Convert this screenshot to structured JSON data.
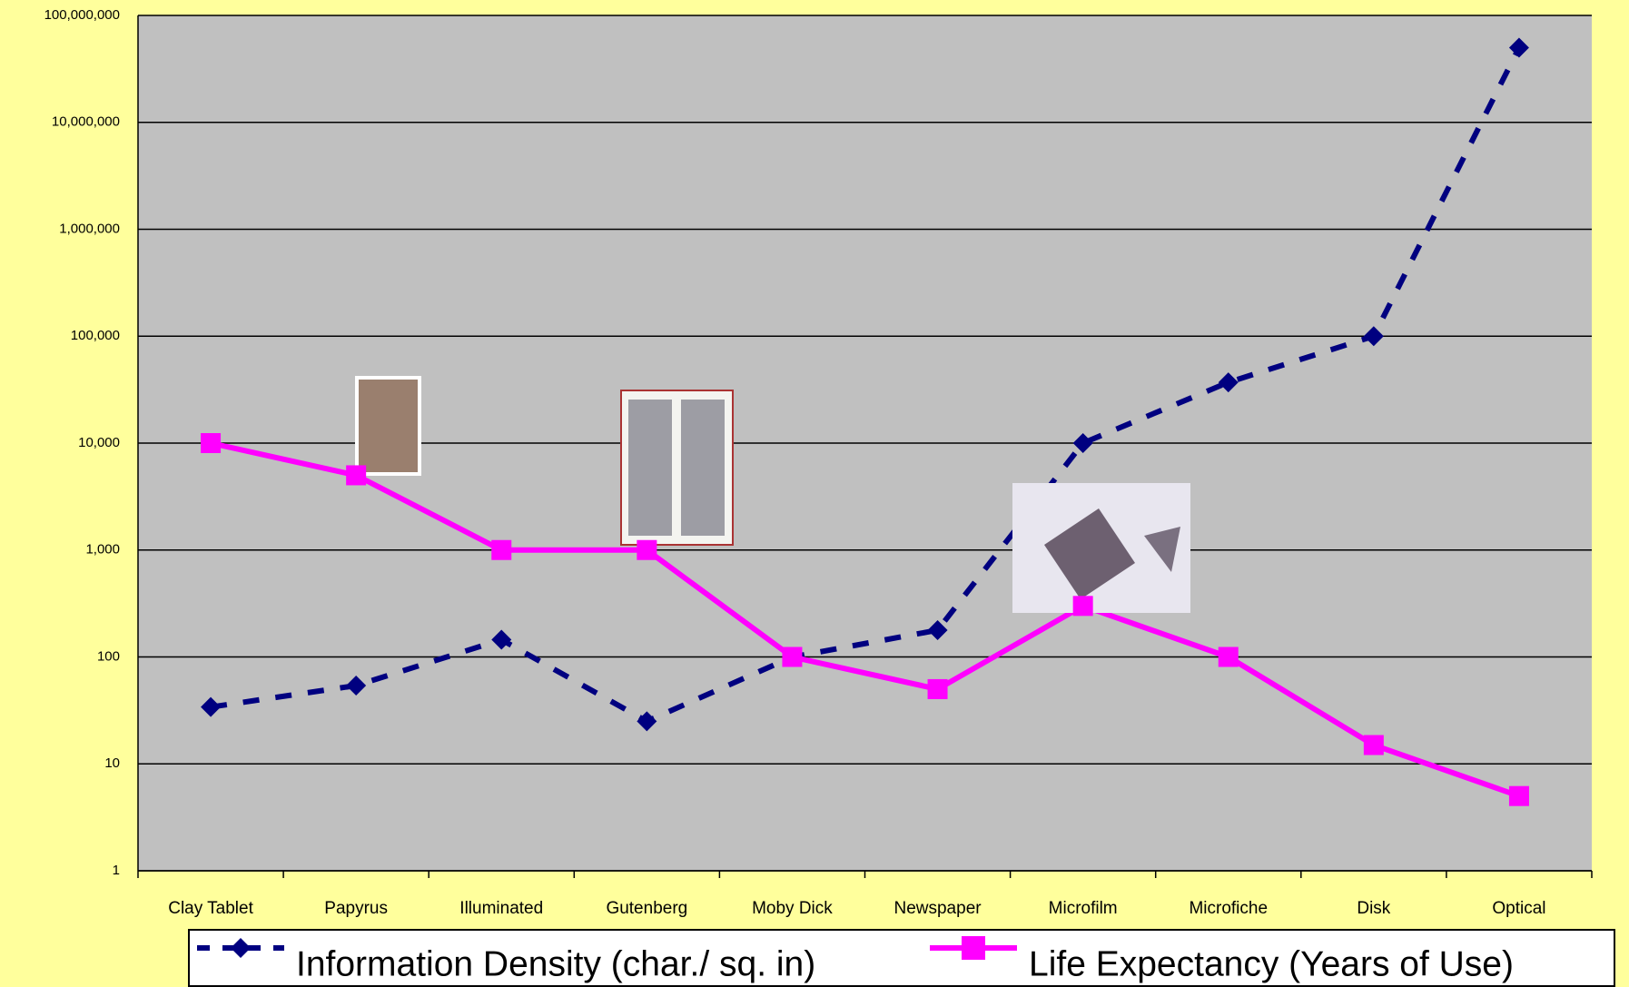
{
  "chart_data": {
    "type": "line",
    "categories": [
      "Clay Tablet",
      "Papyrus",
      "Illuminated",
      "Gutenberg",
      "Moby Dick",
      "Newspaper",
      "Microfilm",
      "Microfiche",
      "Disk",
      "Optical"
    ],
    "series": [
      {
        "name": "Information Density (char./ sq. in)",
        "color": "#000080",
        "line_style": "dashed",
        "marker": "diamond",
        "values": [
          34,
          54,
          145,
          25,
          100,
          178,
          10000,
          37000,
          100000,
          50000000
        ]
      },
      {
        "name": "Life Expectancy (Years of Use)",
        "color": "#ff00ff",
        "line_style": "solid",
        "marker": "square",
        "values": [
          10000,
          5000,
          1000,
          1000,
          100,
          50,
          300,
          100,
          15,
          5
        ]
      }
    ],
    "ylim": [
      1,
      100000000
    ],
    "yticks": [
      1,
      10,
      100,
      {
        "value": 1000,
        "label": "1,000"
      },
      {
        "value": 10000,
        "label": "10,000"
      },
      {
        "value": 100000,
        "label": "100,000"
      },
      {
        "value": 1000000,
        "label": "1,000,000"
      },
      {
        "value": 10000000,
        "label": "10,000,000"
      },
      {
        "value": 100000000,
        "label": "100,000,000"
      }
    ],
    "log_scale": true,
    "grid": true,
    "legend": "bottom"
  }
}
